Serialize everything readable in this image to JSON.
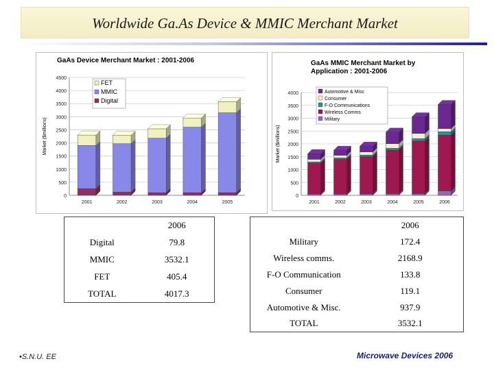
{
  "slide": {
    "title": "Worldwide Ga.As Device & MMIC Merchant Market"
  },
  "colors": {
    "fet": "#f0f0c0",
    "mmic": "#8888e8",
    "digital": "#903060",
    "grid": "#cccccc"
  },
  "chart_data": [
    {
      "type": "bar",
      "stacked": true,
      "title": "GaAs Device Merchant Market : 2001-2006",
      "ylabel": "Market ($millions)",
      "xlabel": "",
      "ylim": [
        0,
        4500
      ],
      "yticks": [
        "0",
        "500",
        "1000",
        "1500",
        "2000",
        "2500",
        "3000",
        "3500",
        "4000",
        "4500"
      ],
      "grid": true,
      "legend": "top-left",
      "categories": [
        "2001",
        "2002",
        "2003",
        "2004",
        "2005"
      ],
      "series": [
        {
          "name": "Digital",
          "color": "#903060",
          "values": [
            250,
            120,
            100,
            100,
            100
          ]
        },
        {
          "name": "MMIC",
          "color": "#8888e8",
          "values": [
            1650,
            1850,
            2080,
            2500,
            3050
          ]
        },
        {
          "name": "FET",
          "color": "#f0f0c0",
          "values": [
            400,
            320,
            360,
            350,
            420
          ]
        }
      ]
    },
    {
      "type": "bar",
      "stacked": true,
      "title": "GaAs MMIC Merchant Market by Application : 2001-2006",
      "title_lines": [
        "GaAs MMIC Merchant Market by",
        "Application : 2001-2006"
      ],
      "ylabel": "Market ($millions)",
      "xlabel": "",
      "ylim": [
        0,
        4000
      ],
      "yticks": [
        "0",
        "500",
        "1000",
        "1500",
        "2000",
        "2500",
        "3000",
        "3500",
        "4000"
      ],
      "grid": true,
      "legend": "top-right",
      "categories": [
        "2001",
        "2002",
        "2003",
        "2004",
        "2005",
        "2006"
      ],
      "series": [
        {
          "name": "Military",
          "color": "#8a6fb8",
          "values": [
            50,
            50,
            55,
            60,
            65,
            172
          ]
        },
        {
          "name": "Wireless Comms",
          "color": "#a01850",
          "values": [
            1200,
            1350,
            1450,
            1700,
            2050,
            2169
          ]
        },
        {
          "name": "F-O Communications",
          "color": "#2e9090",
          "values": [
            50,
            55,
            60,
            70,
            90,
            134
          ]
        },
        {
          "name": "Consumer",
          "color": "#f0f0d0",
          "values": [
            100,
            100,
            120,
            180,
            200,
            119
          ]
        },
        {
          "name": "Automotive & Misc",
          "color": "#6a2890",
          "values": [
            220,
            200,
            230,
            450,
            650,
            938
          ]
        }
      ]
    }
  ],
  "table1": {
    "header": [
      "",
      "2006"
    ],
    "rows": [
      [
        "Digital",
        "79.8"
      ],
      [
        "MMIC",
        "3532.1"
      ],
      [
        "FET",
        "405.4"
      ],
      [
        "TOTAL",
        "4017.3"
      ]
    ]
  },
  "table2": {
    "header": [
      "",
      "2006"
    ],
    "rows": [
      [
        "Military",
        "172.4"
      ],
      [
        "Wireless comms.",
        "2168.9"
      ],
      [
        "F-O Communication",
        "133.8"
      ],
      [
        "Consumer",
        "119.1"
      ],
      [
        "Automotive & Misc.",
        "937.9"
      ],
      [
        "TOTAL",
        "3532.1"
      ]
    ]
  },
  "footer": {
    "left": "•S.N.U. EE",
    "right": "Microwave Devices 2006"
  }
}
